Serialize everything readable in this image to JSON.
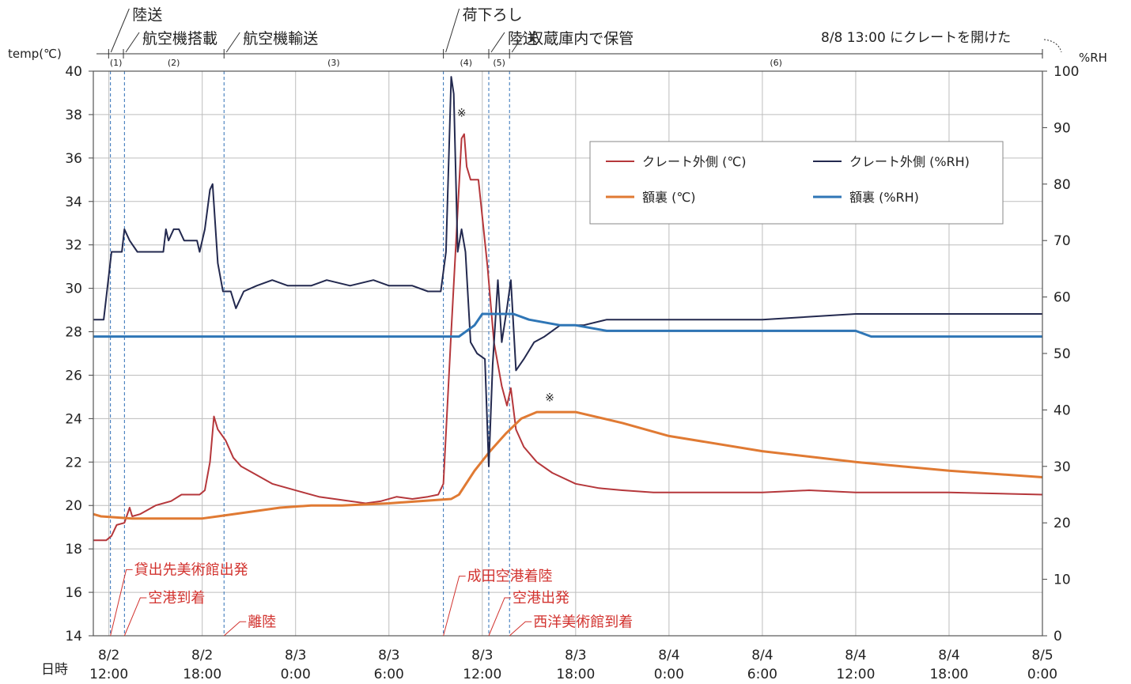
{
  "chart_data": {
    "type": "line",
    "left_axis_label": "temp(℃)",
    "right_axis_label": "%RH",
    "date_label": "日時",
    "ylim": [
      14,
      40
    ],
    "y2lim": [
      0,
      100
    ],
    "y_ticks": [
      14,
      16,
      18,
      20,
      22,
      24,
      26,
      28,
      30,
      32,
      34,
      36,
      38,
      40
    ],
    "y2_ticks": [
      0,
      10,
      20,
      30,
      40,
      50,
      60,
      70,
      80,
      90,
      100
    ],
    "xlim": [
      "2024-08-02T11:00",
      "2024-08-05T00:00"
    ],
    "x_ticks": [
      {
        "t": "2024-08-02T12:00",
        "line1": "8/2",
        "line2": "12:00"
      },
      {
        "t": "2024-08-02T18:00",
        "line1": "8/2",
        "line2": "18:00"
      },
      {
        "t": "2024-08-03T00:00",
        "line1": "8/3",
        "line2": "0:00"
      },
      {
        "t": "2024-08-03T06:00",
        "line1": "8/3",
        "line2": "6:00"
      },
      {
        "t": "2024-08-03T12:00",
        "line1": "8/3",
        "line2": "12:00"
      },
      {
        "t": "2024-08-03T18:00",
        "line1": "8/3",
        "line2": "18:00"
      },
      {
        "t": "2024-08-04T00:00",
        "line1": "8/4",
        "line2": "0:00"
      },
      {
        "t": "2024-08-04T06:00",
        "line1": "8/4",
        "line2": "6:00"
      },
      {
        "t": "2024-08-04T12:00",
        "line1": "8/4",
        "line2": "12:00"
      },
      {
        "t": "2024-08-04T18:00",
        "line1": "8/4",
        "line2": "18:00"
      },
      {
        "t": "2024-08-05T00:00",
        "line1": "8/5",
        "line2": "0:00"
      }
    ],
    "grid": true,
    "legend_position": "top-right",
    "phases": [
      {
        "id": "(1)",
        "label": "陸送",
        "start": "2024-08-02T11:59",
        "end": "2024-08-02T12:56"
      },
      {
        "id": "(2)",
        "label": "航空機搭載",
        "start": "2024-08-02T12:56",
        "end": "2024-08-02T19:24"
      },
      {
        "id": "(3)",
        "label": "航空機輸送",
        "start": "2024-08-02T19:24",
        "end": "2024-08-03T09:30"
      },
      {
        "id": "(4)",
        "label": "荷下ろし",
        "start": "2024-08-03T09:30",
        "end": "2024-08-03T12:25"
      },
      {
        "id": "(5)",
        "label": "陸送",
        "start": "2024-08-03T12:25",
        "end": "2024-08-03T13:45"
      },
      {
        "id": "(6)",
        "label": "収蔵庫内で保管",
        "start": "2024-08-03T13:45",
        "end": "2024-08-05T00:00"
      }
    ],
    "opened_note": "8/8 13:00 にクレートを開けた",
    "events": [
      {
        "label": "貸出先美術館出発",
        "t": "2024-08-02T12:06",
        "text_y": 16.9
      },
      {
        "label": "空港到着",
        "t": "2024-08-02T13:00",
        "text_y": 15.6
      },
      {
        "label": "離陸",
        "t": "2024-08-02T19:24",
        "text_y": 14.5
      },
      {
        "label": "成田空港着陸",
        "t": "2024-08-03T09:30",
        "text_y": 16.6
      },
      {
        "label": "空港出発",
        "t": "2024-08-03T12:25",
        "text_y": 15.6
      },
      {
        "label": "西洋美術館到着",
        "t": "2024-08-03T13:45",
        "text_y": 14.5
      }
    ],
    "notes": [
      {
        "text": "※",
        "t": "2024-08-03T10:40",
        "y": 37.9
      },
      {
        "text": "※",
        "t": "2024-08-03T16:20",
        "y": 24.8
      }
    ],
    "series": [
      {
        "name": "クレート外側 (℃)",
        "axis": "left",
        "color": "#b5373b",
        "points": [
          [
            "2024-08-02T11:00",
            18.4
          ],
          [
            "2024-08-02T11:50",
            18.4
          ],
          [
            "2024-08-02T12:10",
            18.6
          ],
          [
            "2024-08-02T12:30",
            19.1
          ],
          [
            "2024-08-02T13:00",
            19.2
          ],
          [
            "2024-08-02T13:20",
            19.9
          ],
          [
            "2024-08-02T13:30",
            19.5
          ],
          [
            "2024-08-02T14:00",
            19.6
          ],
          [
            "2024-08-02T14:30",
            19.8
          ],
          [
            "2024-08-02T15:00",
            20.0
          ],
          [
            "2024-08-02T16:00",
            20.2
          ],
          [
            "2024-08-02T16:40",
            20.5
          ],
          [
            "2024-08-02T17:50",
            20.5
          ],
          [
            "2024-08-02T18:10",
            20.7
          ],
          [
            "2024-08-02T18:30",
            22.0
          ],
          [
            "2024-08-02T18:45",
            24.1
          ],
          [
            "2024-08-02T19:00",
            23.5
          ],
          [
            "2024-08-02T19:30",
            23.0
          ],
          [
            "2024-08-02T20:00",
            22.2
          ],
          [
            "2024-08-02T20:30",
            21.8
          ],
          [
            "2024-08-02T21:30",
            21.4
          ],
          [
            "2024-08-02T22:30",
            21.0
          ],
          [
            "2024-08-02T23:30",
            20.8
          ],
          [
            "2024-08-03T00:30",
            20.6
          ],
          [
            "2024-08-03T01:30",
            20.4
          ],
          [
            "2024-08-03T02:30",
            20.3
          ],
          [
            "2024-08-03T03:30",
            20.2
          ],
          [
            "2024-08-03T04:30",
            20.1
          ],
          [
            "2024-08-03T05:30",
            20.2
          ],
          [
            "2024-08-03T06:30",
            20.4
          ],
          [
            "2024-08-03T07:30",
            20.3
          ],
          [
            "2024-08-03T08:30",
            20.4
          ],
          [
            "2024-08-03T09:10",
            20.5
          ],
          [
            "2024-08-03T09:30",
            21.0
          ],
          [
            "2024-08-03T10:00",
            28.0
          ],
          [
            "2024-08-03T10:40",
            36.9
          ],
          [
            "2024-08-03T10:50",
            37.1
          ],
          [
            "2024-08-03T11:00",
            35.6
          ],
          [
            "2024-08-03T11:15",
            35.0
          ],
          [
            "2024-08-03T11:45",
            35.0
          ],
          [
            "2024-08-03T12:20",
            31.0
          ],
          [
            "2024-08-03T12:45",
            27.5
          ],
          [
            "2024-08-03T13:15",
            25.5
          ],
          [
            "2024-08-03T13:35",
            24.6
          ],
          [
            "2024-08-03T13:50",
            25.4
          ],
          [
            "2024-08-03T14:10",
            23.5
          ],
          [
            "2024-08-03T14:40",
            22.7
          ],
          [
            "2024-08-03T15:30",
            22.0
          ],
          [
            "2024-08-03T16:30",
            21.5
          ],
          [
            "2024-08-03T18:00",
            21.0
          ],
          [
            "2024-08-03T19:30",
            20.8
          ],
          [
            "2024-08-03T21:00",
            20.7
          ],
          [
            "2024-08-03T23:00",
            20.6
          ],
          [
            "2024-08-04T06:00",
            20.6
          ],
          [
            "2024-08-04T09:00",
            20.7
          ],
          [
            "2024-08-04T12:00",
            20.6
          ],
          [
            "2024-08-04T18:00",
            20.6
          ],
          [
            "2024-08-05T00:00",
            20.5
          ]
        ]
      },
      {
        "name": "額裏 (℃)",
        "axis": "left",
        "color": "#e07a33",
        "points": [
          [
            "2024-08-02T11:00",
            19.6
          ],
          [
            "2024-08-02T11:30",
            19.5
          ],
          [
            "2024-08-02T13:30",
            19.4
          ],
          [
            "2024-08-02T18:00",
            19.4
          ],
          [
            "2024-08-02T19:00",
            19.5
          ],
          [
            "2024-08-02T21:00",
            19.7
          ],
          [
            "2024-08-02T23:00",
            19.9
          ],
          [
            "2024-08-03T01:00",
            20.0
          ],
          [
            "2024-08-03T03:00",
            20.0
          ],
          [
            "2024-08-03T06:00",
            20.1
          ],
          [
            "2024-08-03T08:00",
            20.2
          ],
          [
            "2024-08-03T10:00",
            20.3
          ],
          [
            "2024-08-03T10:30",
            20.5
          ],
          [
            "2024-08-03T11:30",
            21.6
          ],
          [
            "2024-08-03T12:30",
            22.5
          ],
          [
            "2024-08-03T13:30",
            23.3
          ],
          [
            "2024-08-03T14:30",
            24.0
          ],
          [
            "2024-08-03T15:30",
            24.3
          ],
          [
            "2024-08-03T18:00",
            24.3
          ],
          [
            "2024-08-03T21:00",
            23.8
          ],
          [
            "2024-08-04T00:00",
            23.2
          ],
          [
            "2024-08-04T06:00",
            22.5
          ],
          [
            "2024-08-04T12:00",
            22.0
          ],
          [
            "2024-08-04T18:00",
            21.6
          ],
          [
            "2024-08-05T00:00",
            21.3
          ]
        ]
      },
      {
        "name": "クレート外側 (%RH)",
        "axis": "right",
        "color": "#23294f",
        "points": [
          [
            "2024-08-02T11:00",
            56
          ],
          [
            "2024-08-02T11:40",
            56
          ],
          [
            "2024-08-02T12:10",
            68
          ],
          [
            "2024-08-02T12:50",
            68
          ],
          [
            "2024-08-02T13:00",
            72
          ],
          [
            "2024-08-02T13:20",
            70
          ],
          [
            "2024-08-02T13:50",
            68
          ],
          [
            "2024-08-02T15:30",
            68
          ],
          [
            "2024-08-02T15:40",
            72
          ],
          [
            "2024-08-02T15:50",
            70
          ],
          [
            "2024-08-02T16:10",
            72
          ],
          [
            "2024-08-02T16:30",
            72
          ],
          [
            "2024-08-02T16:50",
            70
          ],
          [
            "2024-08-02T17:40",
            70
          ],
          [
            "2024-08-02T17:50",
            68
          ],
          [
            "2024-08-02T18:10",
            72
          ],
          [
            "2024-08-02T18:30",
            79
          ],
          [
            "2024-08-02T18:40",
            80
          ],
          [
            "2024-08-02T19:00",
            66
          ],
          [
            "2024-08-02T19:20",
            61
          ],
          [
            "2024-08-02T19:50",
            61
          ],
          [
            "2024-08-02T20:10",
            58
          ],
          [
            "2024-08-02T20:40",
            61
          ],
          [
            "2024-08-02T21:30",
            62
          ],
          [
            "2024-08-02T22:30",
            63
          ],
          [
            "2024-08-02T23:30",
            62
          ],
          [
            "2024-08-03T01:00",
            62
          ],
          [
            "2024-08-03T02:00",
            63
          ],
          [
            "2024-08-03T03:30",
            62
          ],
          [
            "2024-08-03T05:00",
            63
          ],
          [
            "2024-08-03T06:00",
            62
          ],
          [
            "2024-08-03T07:30",
            62
          ],
          [
            "2024-08-03T08:30",
            61
          ],
          [
            "2024-08-03T09:20",
            61
          ],
          [
            "2024-08-03T09:40",
            68
          ],
          [
            "2024-08-03T10:00",
            99
          ],
          [
            "2024-08-03T10:10",
            96
          ],
          [
            "2024-08-03T10:25",
            68
          ],
          [
            "2024-08-03T10:40",
            72
          ],
          [
            "2024-08-03T10:55",
            68
          ],
          [
            "2024-08-03T11:15",
            52
          ],
          [
            "2024-08-03T11:40",
            50
          ],
          [
            "2024-08-03T12:10",
            49
          ],
          [
            "2024-08-03T12:25",
            30
          ],
          [
            "2024-08-03T12:40",
            48
          ],
          [
            "2024-08-03T13:00",
            63
          ],
          [
            "2024-08-03T13:15",
            52
          ],
          [
            "2024-08-03T13:35",
            58
          ],
          [
            "2024-08-03T13:50",
            63
          ],
          [
            "2024-08-03T14:10",
            47
          ],
          [
            "2024-08-03T14:40",
            49
          ],
          [
            "2024-08-03T15:20",
            52
          ],
          [
            "2024-08-03T16:00",
            53
          ],
          [
            "2024-08-03T17:00",
            55
          ],
          [
            "2024-08-03T18:30",
            55
          ],
          [
            "2024-08-03T20:00",
            56
          ],
          [
            "2024-08-04T00:00",
            56
          ],
          [
            "2024-08-04T06:00",
            56
          ],
          [
            "2024-08-04T12:00",
            57
          ],
          [
            "2024-08-04T18:00",
            57
          ],
          [
            "2024-08-05T00:00",
            57
          ]
        ]
      },
      {
        "name": "額裏 (%RH)",
        "axis": "right",
        "color": "#2f76b6",
        "points": [
          [
            "2024-08-02T11:00",
            53
          ],
          [
            "2024-08-03T09:00",
            53
          ],
          [
            "2024-08-03T10:30",
            53
          ],
          [
            "2024-08-03T11:30",
            55
          ],
          [
            "2024-08-03T12:00",
            57
          ],
          [
            "2024-08-03T14:00",
            57
          ],
          [
            "2024-08-03T15:00",
            56
          ],
          [
            "2024-08-03T17:00",
            55
          ],
          [
            "2024-08-03T18:00",
            55
          ],
          [
            "2024-08-03T20:00",
            54
          ],
          [
            "2024-08-04T12:00",
            54
          ],
          [
            "2024-08-04T13:00",
            53
          ],
          [
            "2024-08-05T00:00",
            53
          ]
        ]
      }
    ]
  }
}
